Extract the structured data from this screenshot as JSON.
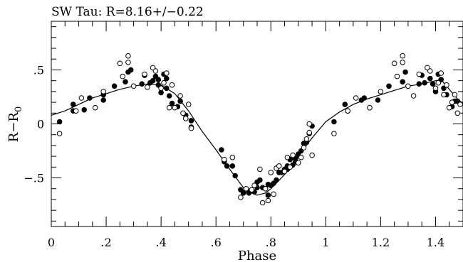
{
  "chart_data": {
    "type": "scatter",
    "title": "SW Tau: R=8.16+/−0.22",
    "xlabel": "Phase",
    "ylabel": "R−R",
    "ylabel_subscript": "0",
    "xlim": [
      0,
      1.5
    ],
    "ylim": [
      -0.95,
      0.95
    ],
    "x_ticks": [
      {
        "value": 0,
        "label": "0"
      },
      {
        "value": 0.2,
        "label": ".2"
      },
      {
        "value": 0.4,
        "label": ".4"
      },
      {
        "value": 0.6,
        "label": ".6"
      },
      {
        "value": 0.8,
        "label": ".8"
      },
      {
        "value": 1.0,
        "label": "1"
      },
      {
        "value": 1.2,
        "label": "1.2"
      },
      {
        "value": 1.4,
        "label": "1.4"
      }
    ],
    "y_ticks": [
      {
        "value": 0.5,
        "label": ".5"
      },
      {
        "value": 0,
        "label": "0"
      },
      {
        "value": -0.5,
        "label": "−.5"
      }
    ],
    "grid": false,
    "series": [
      {
        "marker": "filled-circle",
        "points": [
          [
            0.03,
            0.02
          ],
          [
            0.08,
            0.12
          ],
          [
            0.08,
            0.18
          ],
          [
            0.12,
            0.13
          ],
          [
            0.14,
            0.24
          ],
          [
            0.19,
            0.22
          ],
          [
            0.19,
            0.27
          ],
          [
            0.23,
            0.35
          ],
          [
            0.27,
            0.39
          ],
          [
            0.28,
            0.48
          ],
          [
            0.29,
            0.5
          ],
          [
            0.33,
            0.37
          ],
          [
            0.34,
            0.45
          ],
          [
            0.36,
            0.38
          ],
          [
            0.37,
            0.4
          ],
          [
            0.38,
            0.44
          ],
          [
            0.39,
            0.41
          ],
          [
            0.39,
            0.36
          ],
          [
            0.4,
            0.29
          ],
          [
            0.41,
            0.46
          ],
          [
            0.42,
            0.42
          ],
          [
            0.42,
            0.33
          ],
          [
            0.43,
            0.26
          ],
          [
            0.44,
            0.19
          ],
          [
            0.46,
            0.16
          ],
          [
            0.47,
            0.21
          ],
          [
            0.49,
            0.08
          ],
          [
            0.51,
            0.03
          ],
          [
            0.51,
            -0.03
          ],
          [
            0.62,
            -0.24
          ],
          [
            0.63,
            -0.35
          ],
          [
            0.64,
            -0.39
          ],
          [
            0.66,
            -0.39
          ],
          [
            0.67,
            -0.48
          ],
          [
            0.69,
            -0.61
          ],
          [
            0.7,
            -0.64
          ],
          [
            0.72,
            -0.63
          ],
          [
            0.72,
            -0.64
          ],
          [
            0.74,
            -0.63
          ],
          [
            0.75,
            -0.59
          ],
          [
            0.75,
            -0.54
          ],
          [
            0.76,
            -0.52
          ],
          [
            0.77,
            -0.59
          ],
          [
            0.78,
            -0.6
          ],
          [
            0.79,
            -0.66
          ],
          [
            0.79,
            -0.56
          ],
          [
            0.8,
            -0.57
          ],
          [
            0.81,
            -0.55
          ],
          [
            0.82,
            -0.52
          ],
          [
            0.83,
            -0.45
          ],
          [
            0.84,
            -0.45
          ],
          [
            0.85,
            -0.42
          ],
          [
            0.86,
            -0.42
          ],
          [
            0.86,
            -0.39
          ],
          [
            0.87,
            -0.33
          ],
          [
            0.88,
            -0.31
          ],
          [
            0.88,
            -0.38
          ],
          [
            0.89,
            -0.35
          ],
          [
            0.89,
            -0.32
          ],
          [
            0.9,
            -0.28
          ],
          [
            0.91,
            -0.25
          ],
          [
            0.92,
            -0.18
          ],
          [
            0.93,
            -0.17
          ],
          [
            0.94,
            -0.09
          ],
          [
            0.95,
            -0.02
          ],
          [
            1.03,
            0.02
          ],
          [
            1.07,
            0.18
          ],
          [
            1.08,
            0.12
          ],
          [
            1.13,
            0.22
          ],
          [
            1.14,
            0.24
          ],
          [
            1.19,
            0.22
          ],
          [
            1.23,
            0.35
          ],
          [
            1.28,
            0.39
          ],
          [
            1.29,
            0.48
          ],
          [
            1.34,
            0.37
          ],
          [
            1.35,
            0.45
          ],
          [
            1.36,
            0.38
          ],
          [
            1.38,
            0.42
          ],
          [
            1.39,
            0.37
          ],
          [
            1.4,
            0.3
          ],
          [
            1.41,
            0.46
          ],
          [
            1.42,
            0.41
          ],
          [
            1.43,
            0.33
          ],
          [
            1.44,
            0.27
          ],
          [
            1.46,
            0.16
          ],
          [
            1.47,
            0.21
          ],
          [
            1.48,
            0.21
          ]
        ]
      },
      {
        "marker": "open-circle",
        "points": [
          [
            0.03,
            -0.09
          ],
          [
            0.09,
            0.12
          ],
          [
            0.11,
            0.24
          ],
          [
            0.16,
            0.15
          ],
          [
            0.19,
            0.3
          ],
          [
            0.25,
            0.56
          ],
          [
            0.26,
            0.44
          ],
          [
            0.28,
            0.57
          ],
          [
            0.28,
            0.63
          ],
          [
            0.3,
            0.35
          ],
          [
            0.34,
            0.46
          ],
          [
            0.35,
            0.34
          ],
          [
            0.37,
            0.52
          ],
          [
            0.38,
            0.49
          ],
          [
            0.4,
            0.33
          ],
          [
            0.41,
            0.38
          ],
          [
            0.42,
            0.47
          ],
          [
            0.43,
            0.15
          ],
          [
            0.44,
            0.36
          ],
          [
            0.45,
            0.15
          ],
          [
            0.47,
            0.26
          ],
          [
            0.48,
            0.1
          ],
          [
            0.49,
            0.05
          ],
          [
            0.5,
            0.18
          ],
          [
            0.51,
            -0.04
          ],
          [
            0.63,
            -0.33
          ],
          [
            0.66,
            -0.31
          ],
          [
            0.69,
            -0.68
          ],
          [
            0.71,
            -0.6
          ],
          [
            0.73,
            -0.61
          ],
          [
            0.74,
            -0.57
          ],
          [
            0.76,
            -0.42
          ],
          [
            0.77,
            -0.73
          ],
          [
            0.78,
            -0.6
          ],
          [
            0.79,
            -0.71
          ],
          [
            0.8,
            -0.45
          ],
          [
            0.81,
            -0.65
          ],
          [
            0.82,
            -0.41
          ],
          [
            0.83,
            -0.39
          ],
          [
            0.85,
            -0.44
          ],
          [
            0.86,
            -0.31
          ],
          [
            0.87,
            -0.4
          ],
          [
            0.88,
            -0.29
          ],
          [
            0.9,
            -0.36
          ],
          [
            0.91,
            -0.31
          ],
          [
            0.92,
            -0.22
          ],
          [
            0.93,
            -0.14
          ],
          [
            0.94,
            -0.08
          ],
          [
            0.94,
            0.0
          ],
          [
            0.95,
            -0.29
          ],
          [
            1.03,
            -0.09
          ],
          [
            1.08,
            0.12
          ],
          [
            1.11,
            0.24
          ],
          [
            1.16,
            0.15
          ],
          [
            1.2,
            0.3
          ],
          [
            1.25,
            0.56
          ],
          [
            1.26,
            0.44
          ],
          [
            1.28,
            0.57
          ],
          [
            1.28,
            0.63
          ],
          [
            1.3,
            0.35
          ],
          [
            1.32,
            0.26
          ],
          [
            1.34,
            0.46
          ],
          [
            1.37,
            0.52
          ],
          [
            1.38,
            0.49
          ],
          [
            1.4,
            0.33
          ],
          [
            1.41,
            0.38
          ],
          [
            1.42,
            0.47
          ],
          [
            1.43,
            0.27
          ],
          [
            1.44,
            0.36
          ],
          [
            1.45,
            0.15
          ],
          [
            1.46,
            0.2
          ],
          [
            1.47,
            0.27
          ],
          [
            1.48,
            0.1
          ],
          [
            1.49,
            0.18
          ]
        ]
      },
      {
        "marker": "line",
        "points": [
          [
            0.0,
            0.08
          ],
          [
            0.05,
            0.12
          ],
          [
            0.1,
            0.18
          ],
          [
            0.15,
            0.24
          ],
          [
            0.2,
            0.28
          ],
          [
            0.25,
            0.32
          ],
          [
            0.3,
            0.35
          ],
          [
            0.35,
            0.37
          ],
          [
            0.4,
            0.36
          ],
          [
            0.45,
            0.28
          ],
          [
            0.5,
            0.12
          ],
          [
            0.55,
            -0.07
          ],
          [
            0.6,
            -0.24
          ],
          [
            0.65,
            -0.42
          ],
          [
            0.7,
            -0.59
          ],
          [
            0.72,
            -0.63
          ],
          [
            0.75,
            -0.66
          ],
          [
            0.78,
            -0.64
          ],
          [
            0.8,
            -0.6
          ],
          [
            0.85,
            -0.47
          ],
          [
            0.9,
            -0.3
          ],
          [
            0.95,
            -0.13
          ],
          [
            1.0,
            0.02
          ],
          [
            1.05,
            0.11
          ],
          [
            1.1,
            0.18
          ],
          [
            1.15,
            0.23
          ],
          [
            1.2,
            0.27
          ],
          [
            1.25,
            0.31
          ],
          [
            1.3,
            0.35
          ],
          [
            1.35,
            0.37
          ],
          [
            1.4,
            0.4
          ],
          [
            1.42,
            0.41
          ],
          [
            1.45,
            0.32
          ],
          [
            1.48,
            0.23
          ],
          [
            1.5,
            0.19
          ]
        ]
      }
    ]
  }
}
